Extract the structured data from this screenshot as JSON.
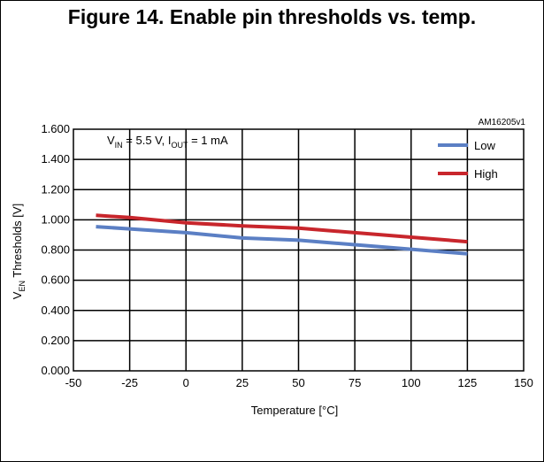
{
  "figure": {
    "title": "Figure 14. Enable pin thresholds vs. temp.",
    "code": "AM16205v1"
  },
  "chart_data": {
    "type": "line",
    "condition": {
      "v": "V",
      "v_sub": "IN",
      "v_rest": " = 5.5 V, I",
      "i_sub": "OUT",
      "i_rest": " = 1 mA"
    },
    "xlabel": "Temperature [°C]",
    "ylabel": {
      "main": "V",
      "sub": "EN",
      "rest": " Thresholds [V]"
    },
    "xlim": [
      -50,
      150
    ],
    "ylim": [
      0,
      1.6
    ],
    "xticks": [
      -50,
      -25,
      0,
      25,
      50,
      75,
      100,
      125,
      150
    ],
    "xtick_labels": [
      "-50",
      "-25",
      "0",
      "25",
      "50",
      "75",
      "100",
      "125",
      "150"
    ],
    "yticks": [
      0,
      0.2,
      0.4,
      0.6,
      0.8,
      1.0,
      1.2,
      1.4,
      1.6
    ],
    "ytick_labels": [
      "0.000",
      "0.200",
      "0.400",
      "0.600",
      "0.800",
      "1.000",
      "1.200",
      "1.400",
      "1.600"
    ],
    "grid": true,
    "legend_position": "top-right",
    "series": [
      {
        "name": "Low",
        "color": "#5b7fc4",
        "x": [
          -40,
          -25,
          0,
          25,
          50,
          75,
          100,
          125
        ],
        "y": [
          0.955,
          0.94,
          0.915,
          0.88,
          0.865,
          0.835,
          0.805,
          0.775
        ]
      },
      {
        "name": "High",
        "color": "#c8262c",
        "x": [
          -40,
          -25,
          0,
          25,
          50,
          75,
          100,
          125
        ],
        "y": [
          1.03,
          1.015,
          0.98,
          0.96,
          0.945,
          0.915,
          0.885,
          0.855
        ]
      }
    ]
  }
}
